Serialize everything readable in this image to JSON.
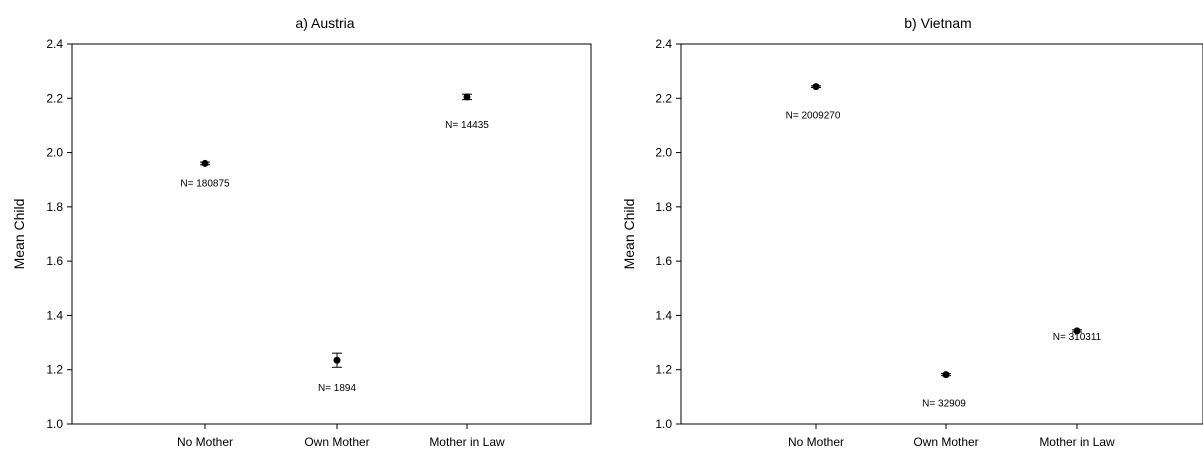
{
  "chart_data": [
    {
      "type": "scatter",
      "title": "a) Austria",
      "xlabel": "",
      "ylabel": "Mean Child",
      "ylim": [
        1.0,
        2.4
      ],
      "yticks": [
        "1.0",
        "1.2",
        "1.4",
        "1.6",
        "1.8",
        "2.0",
        "2.2",
        "2.4"
      ],
      "categories": [
        "No Mother",
        "Own Mother",
        "Mother in Law"
      ],
      "values": [
        1.96,
        1.235,
        2.205
      ],
      "error": [
        0.005,
        0.026,
        0.01
      ],
      "annotations": [
        "N= 180875",
        "N= 1894",
        "N= 14435"
      ],
      "grid": false,
      "legend": "none"
    },
    {
      "type": "scatter",
      "title": "b) Vietnam",
      "xlabel": "",
      "ylabel": "Mean Child",
      "ylim": [
        1.0,
        2.4
      ],
      "yticks": [
        "1.0",
        "1.2",
        "1.4",
        "1.6",
        "1.8",
        "2.0",
        "2.2",
        "2.4"
      ],
      "categories": [
        "No Mother",
        "Own Mother",
        "Mother in Law"
      ],
      "values": [
        2.243,
        1.182,
        1.343
      ],
      "error": [
        0.003,
        0.004,
        0.004
      ],
      "annotations": [
        "N= 2009270",
        "N= 32909",
        "N= 310311"
      ],
      "grid": false,
      "legend": "none"
    }
  ]
}
